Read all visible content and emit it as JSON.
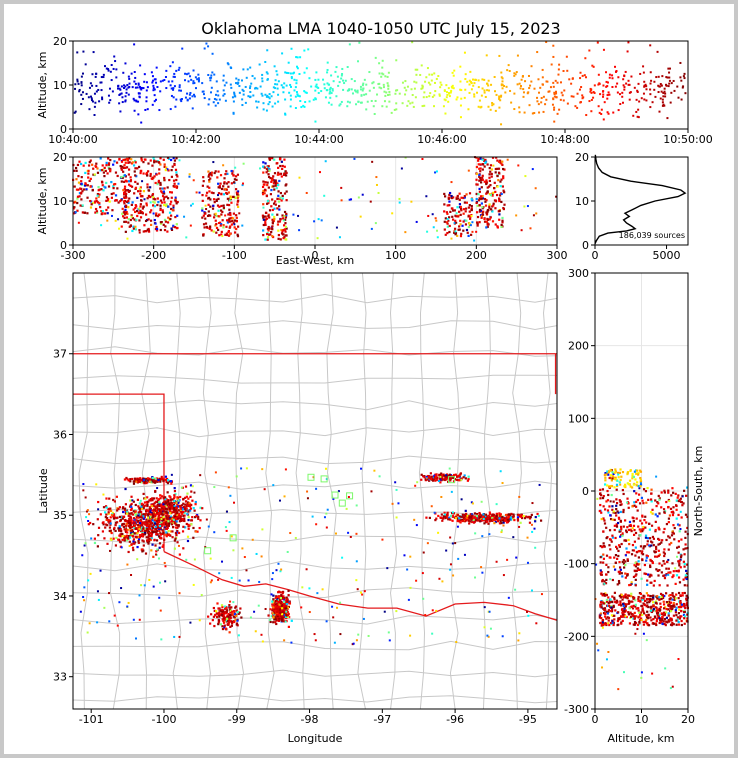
{
  "title": "Oklahoma LMA 1040-1050 UTC July 15, 2023",
  "colors": {
    "state_border": "#e41a1c",
    "county_lines": "#c8c8c8",
    "frame": "#c8c8c8",
    "grid": "#e6e6e6",
    "colormap": "jet (blue early to dark red late)"
  },
  "chart_data": [
    {
      "id": "time-altitude",
      "type": "scatter",
      "xlabel": "",
      "ylabel": "Altitude, km",
      "ylim": [
        0,
        20
      ],
      "yticks": [
        "0",
        "10",
        "20"
      ],
      "xticks": [
        "10:40:00",
        "10:42:00",
        "10:44:00",
        "10:46:00",
        "10:48:00",
        "10:50:00"
      ],
      "xlim": [
        "10:40:00",
        "10:50:00"
      ],
      "color_by": "time",
      "density_note": "sources span 10:40-10:50 at altitudes ~1-20 km, densest 3-17 km"
    },
    {
      "id": "eastwest-altitude",
      "type": "scatter",
      "xlabel": "East-West, km",
      "ylabel": "Altitude, km",
      "xlim": [
        -300,
        300
      ],
      "ylim": [
        0,
        20
      ],
      "xticks": [
        "-300",
        "-200",
        "-100",
        "0",
        "100",
        "200",
        "300"
      ],
      "yticks": [
        "0",
        "10",
        "20"
      ],
      "clusters": [
        {
          "x_range": [
            -240,
            -170
          ],
          "alt_range": [
            3,
            20
          ],
          "density": "very high"
        },
        {
          "x_range": [
            -300,
            -230
          ],
          "alt_range": [
            7,
            20
          ],
          "density": "high"
        },
        {
          "x_range": [
            -140,
            -95
          ],
          "alt_range": [
            2,
            17
          ],
          "density": "high"
        },
        {
          "x_range": [
            -65,
            -35
          ],
          "alt_range": [
            1,
            20
          ],
          "density": "high"
        },
        {
          "x_range": [
            160,
            195
          ],
          "alt_range": [
            2,
            12
          ],
          "density": "medium"
        },
        {
          "x_range": [
            200,
            235
          ],
          "alt_range": [
            4,
            20
          ],
          "density": "high"
        }
      ]
    },
    {
      "id": "altitude-histogram",
      "type": "line",
      "xlabel": "",
      "ylabel": "",
      "xlim": [
        0,
        6500
      ],
      "ylim": [
        0,
        20
      ],
      "xticks": [
        "0",
        "5000"
      ],
      "yticks": [
        "0",
        "10",
        "20"
      ],
      "annotation": "186,039 sources",
      "points": [
        {
          "altitude": 0.3,
          "count": 0
        },
        {
          "altitude": 1.0,
          "count": 100
        },
        {
          "altitude": 2.0,
          "count": 300
        },
        {
          "altitude": 2.7,
          "count": 900
        },
        {
          "altitude": 3.2,
          "count": 2200
        },
        {
          "altitude": 3.7,
          "count": 2800
        },
        {
          "altitude": 4.2,
          "count": 2600
        },
        {
          "altitude": 5.0,
          "count": 2200
        },
        {
          "altitude": 5.7,
          "count": 2000
        },
        {
          "altitude": 6.5,
          "count": 2400
        },
        {
          "altitude": 7.2,
          "count": 2100
        },
        {
          "altitude": 8.0,
          "count": 2600
        },
        {
          "altitude": 9.0,
          "count": 3200
        },
        {
          "altitude": 10.0,
          "count": 4200
        },
        {
          "altitude": 11.0,
          "count": 5800
        },
        {
          "altitude": 11.8,
          "count": 6300
        },
        {
          "altitude": 12.5,
          "count": 6000
        },
        {
          "altitude": 13.5,
          "count": 4700
        },
        {
          "altitude": 14.5,
          "count": 2500
        },
        {
          "altitude": 15.5,
          "count": 1100
        },
        {
          "altitude": 16.5,
          "count": 500
        },
        {
          "altitude": 17.5,
          "count": 250
        },
        {
          "altitude": 18.5,
          "count": 120
        },
        {
          "altitude": 19.5,
          "count": 60
        },
        {
          "altitude": 20.5,
          "count": 20
        }
      ]
    },
    {
      "id": "plan-view",
      "type": "scatter",
      "xlabel": "Longitude",
      "ylabel": "Latitude",
      "xlim": [
        -101.25,
        -94.6
      ],
      "ylim": [
        32.6,
        38.0
      ],
      "xticks": [
        "-101",
        "-100",
        "-99",
        "-98",
        "-97",
        "-96",
        "-95"
      ],
      "yticks": [
        "33",
        "34",
        "35",
        "36",
        "37"
      ],
      "clusters": [
        {
          "lon": -100.3,
          "lat": 34.9,
          "spread": [
            0.45,
            0.25
          ],
          "density": "very high"
        },
        {
          "lon": -99.9,
          "lat": 35.05,
          "spread": [
            0.3,
            0.2
          ],
          "density": "high"
        },
        {
          "lon": -98.4,
          "lat": 33.85,
          "spread": [
            0.1,
            0.15
          ],
          "density": "high"
        },
        {
          "lon": -99.15,
          "lat": 33.75,
          "spread": [
            0.15,
            0.12
          ],
          "density": "medium"
        },
        {
          "lon": -95.6,
          "lat": 34.97,
          "spread": [
            0.5,
            0.05
          ],
          "density": "high"
        },
        {
          "lon": -96.15,
          "lat": 35.47,
          "spread": [
            0.25,
            0.04
          ],
          "density": "medium"
        },
        {
          "lon": -100.2,
          "lat": 35.43,
          "spread": [
            0.25,
            0.03
          ],
          "density": "medium"
        }
      ]
    },
    {
      "id": "altitude-northsouth",
      "type": "scatter",
      "xlabel": "Altitude, km",
      "ylabel": "North-South, km",
      "xlim": [
        0,
        20
      ],
      "ylim": [
        -300,
        300
      ],
      "xticks": [
        "0",
        "10",
        "20"
      ],
      "yticks": [
        "-300",
        "-200",
        "-100",
        "0",
        "100",
        "200",
        "300"
      ],
      "clusters": [
        {
          "ns_range": [
            -130,
            5
          ],
          "alt_range": [
            1,
            20
          ],
          "density": "very high"
        },
        {
          "ns_range": [
            -185,
            -140
          ],
          "alt_range": [
            1,
            20
          ],
          "density": "very high"
        },
        {
          "ns_range": [
            5,
            30
          ],
          "alt_range": [
            2,
            10
          ],
          "density": "medium"
        }
      ]
    }
  ]
}
